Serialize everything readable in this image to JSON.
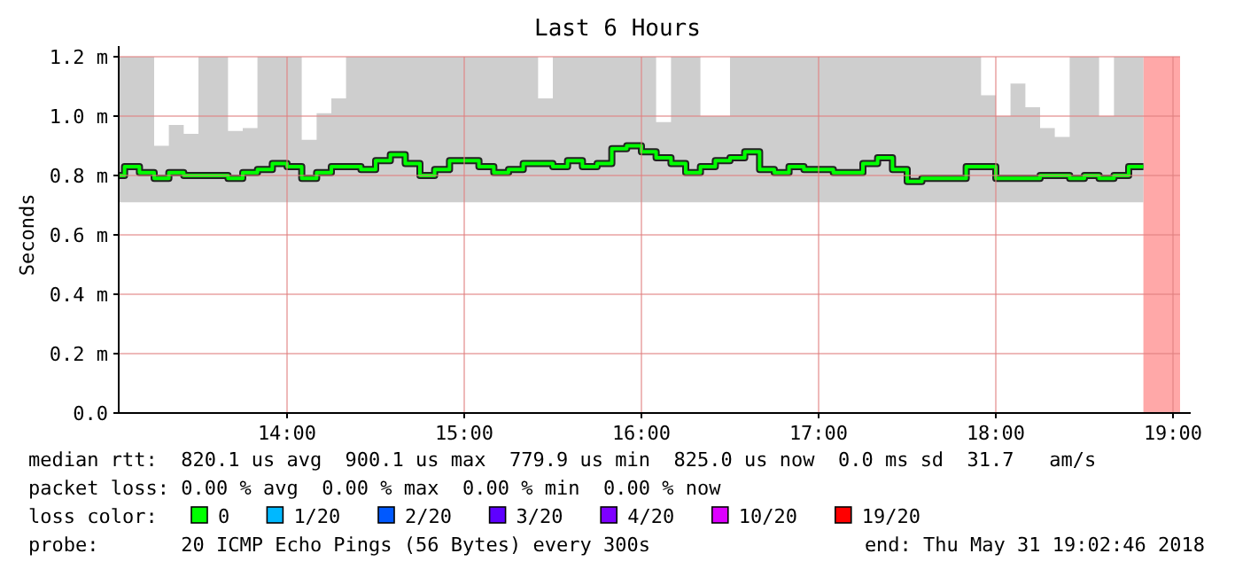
{
  "chart_data": {
    "type": "step",
    "title": "Last 6 Hours",
    "ylabel": "Seconds",
    "legend_title": "loss color:",
    "legend": "bottom",
    "grid": true,
    "xlim": [
      13.05,
      19.04
    ],
    "xticks": [
      {
        "value": 14,
        "label": "14:00"
      },
      {
        "value": 15,
        "label": "15:00"
      },
      {
        "value": 16,
        "label": "16:00"
      },
      {
        "value": 17,
        "label": "17:00"
      },
      {
        "value": 18,
        "label": "18:00"
      },
      {
        "value": 19,
        "label": "19:00"
      }
    ],
    "ylim": [
      0,
      1.2
    ],
    "yticks": [
      {
        "value": 0,
        "label": "0.0"
      },
      {
        "value": 0.2,
        "label": "0.2 m"
      },
      {
        "value": 0.4,
        "label": "0.4 m"
      },
      {
        "value": 0.6,
        "label": "0.6 m"
      },
      {
        "value": 0.8,
        "label": "0.8 m"
      },
      {
        "value": 1.0,
        "label": "1.0 m"
      },
      {
        "value": 1.2,
        "label": "1.2 m"
      }
    ],
    "bands": [
      {
        "axis": "x",
        "from": 18.833,
        "to": 19.04,
        "color": "#ffa8a8"
      }
    ],
    "series": [
      {
        "name": "0",
        "color": "#00ff00",
        "x": [
          13.05,
          13.083,
          13.167,
          13.25,
          13.333,
          13.417,
          13.5,
          13.583,
          13.667,
          13.75,
          13.833,
          13.917,
          14,
          14.083,
          14.167,
          14.25,
          14.333,
          14.417,
          14.5,
          14.583,
          14.667,
          14.75,
          14.833,
          14.917,
          15,
          15.083,
          15.167,
          15.25,
          15.333,
          15.417,
          15.5,
          15.583,
          15.667,
          15.75,
          15.833,
          15.917,
          16,
          16.083,
          16.167,
          16.25,
          16.333,
          16.417,
          16.5,
          16.583,
          16.667,
          16.75,
          16.833,
          16.917,
          17,
          17.083,
          17.167,
          17.25,
          17.333,
          17.417,
          17.5,
          17.583,
          17.667,
          17.75,
          17.833,
          17.917,
          18,
          18.083,
          18.167,
          18.25,
          18.333,
          18.417,
          18.5,
          18.583,
          18.667,
          18.75,
          18.833
        ],
        "values": [
          0.8,
          0.83,
          0.81,
          0.79,
          0.81,
          0.8,
          0.8,
          0.8,
          0.79,
          0.81,
          0.82,
          0.84,
          0.83,
          0.79,
          0.81,
          0.83,
          0.83,
          0.82,
          0.85,
          0.87,
          0.84,
          0.8,
          0.82,
          0.85,
          0.85,
          0.83,
          0.81,
          0.82,
          0.84,
          0.84,
          0.83,
          0.85,
          0.83,
          0.84,
          0.89,
          0.9,
          0.88,
          0.86,
          0.84,
          0.81,
          0.83,
          0.85,
          0.86,
          0.88,
          0.82,
          0.81,
          0.83,
          0.82,
          0.82,
          0.81,
          0.81,
          0.84,
          0.86,
          0.82,
          0.78,
          0.79,
          0.79,
          0.79,
          0.83,
          0.83,
          0.79,
          0.79,
          0.79,
          0.8,
          0.8,
          0.79,
          0.8,
          0.79,
          0.8,
          0.83,
          0.83
        ],
        "lower": [
          0.71,
          0.71,
          0.71,
          0.71,
          0.71,
          0.71,
          0.71,
          0.71,
          0.71,
          0.71,
          0.71,
          0.71,
          0.71,
          0.71,
          0.71,
          0.71,
          0.71,
          0.71,
          0.71,
          0.71,
          0.71,
          0.71,
          0.71,
          0.71,
          0.71,
          0.71,
          0.71,
          0.71,
          0.71,
          0.71,
          0.71,
          0.71,
          0.71,
          0.71,
          0.71,
          0.71,
          0.71,
          0.71,
          0.71,
          0.71,
          0.71,
          0.71,
          0.71,
          0.71,
          0.71,
          0.71,
          0.71,
          0.71,
          0.71,
          0.71,
          0.71,
          0.71,
          0.71,
          0.71,
          0.71,
          0.71,
          0.71,
          0.71,
          0.71,
          0.71,
          0.71,
          0.71,
          0.71,
          0.71,
          0.71,
          0.71,
          0.71,
          0.71,
          0.71,
          0.71,
          0.71
        ],
        "upper": [
          1.2,
          1.2,
          1.2,
          0.9,
          0.97,
          0.94,
          1.2,
          1.2,
          0.95,
          0.96,
          1.2,
          1.2,
          1.2,
          0.92,
          1.01,
          1.06,
          1.2,
          1.2,
          1.2,
          1.2,
          1.2,
          1.2,
          1.2,
          1.2,
          1.2,
          1.2,
          1.2,
          1.2,
          1.2,
          1.06,
          1.2,
          1.2,
          1.2,
          1.2,
          1.2,
          1.2,
          1.2,
          0.98,
          1.2,
          1.2,
          1.0,
          1.0,
          1.2,
          1.2,
          1.2,
          1.2,
          1.2,
          1.2,
          1.2,
          1.2,
          1.2,
          1.2,
          1.2,
          1.2,
          1.2,
          1.2,
          1.2,
          1.2,
          1.2,
          1.07,
          1.0,
          1.11,
          1.03,
          0.96,
          0.93,
          1.2,
          1.2,
          1.0,
          1.2,
          1.2,
          1.2
        ]
      },
      {
        "name": "1/20",
        "color": "#00b8ff"
      },
      {
        "name": "2/20",
        "color": "#0059ff"
      },
      {
        "name": "3/20",
        "color": "#5e00ff"
      },
      {
        "name": "4/20",
        "color": "#7e00ff"
      },
      {
        "name": "10/20",
        "color": "#dd00ff"
      },
      {
        "name": "19/20",
        "color": "#ff0000"
      }
    ],
    "annotations": [
      "median rtt:  820.1 us avg  900.1 us max  779.9 us min  825.0 us now  0.0 ms sd  31.7   am/s",
      "packet loss: 0.00 % avg  0.00 % max  0.00 % min  0.00 % now",
      "probe:       20 ICMP Echo Pings (56 Bytes) every 300s",
      "end: Thu May 31 19:02:46 2018"
    ]
  }
}
